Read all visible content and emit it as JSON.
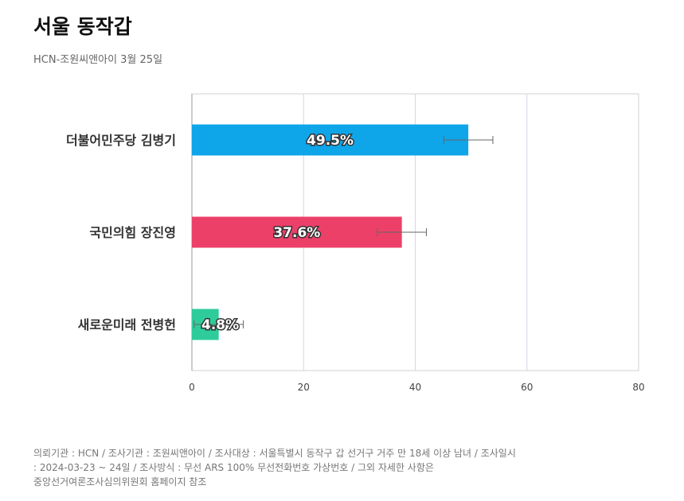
{
  "title": "서울 동작갑",
  "subtitle": "HCN-조원씨앤아이 3월 25일",
  "chart_data": {
    "type": "bar",
    "orientation": "horizontal",
    "categories": [
      "더불어민주당 김병기",
      "국민의힘 장진영",
      "새로운미래 전병헌"
    ],
    "values": [
      49.5,
      37.6,
      4.8
    ],
    "value_labels": [
      "49.5%",
      "37.6%",
      "4.8%"
    ],
    "error_bars": [
      [
        45.1,
        53.9
      ],
      [
        33.2,
        42.0
      ],
      [
        0.4,
        9.2
      ]
    ],
    "colors": [
      "#0ea5e9",
      "#ec4069",
      "#2ecc9a"
    ],
    "xlim": [
      0,
      80
    ],
    "xticks": [
      0,
      20,
      40,
      60,
      80
    ],
    "grid": true,
    "legend": "none"
  },
  "footnote": {
    "lines": [
      "의뢰기관 : HCN / 조사기관 : 조원씨앤아이 / 조사대상 : 서울특별시 동작구 갑 선거구 거주 만 18세 이상 남녀 / 조사일시",
      ": 2024-03-23 ~ 24일 / 조사방식 : 무선 ARS 100% 무선전화번호 가상번호 / 그외 자세한 사항은",
      "중앙선거여론조사심의위원회 홈페이지 참조"
    ]
  }
}
